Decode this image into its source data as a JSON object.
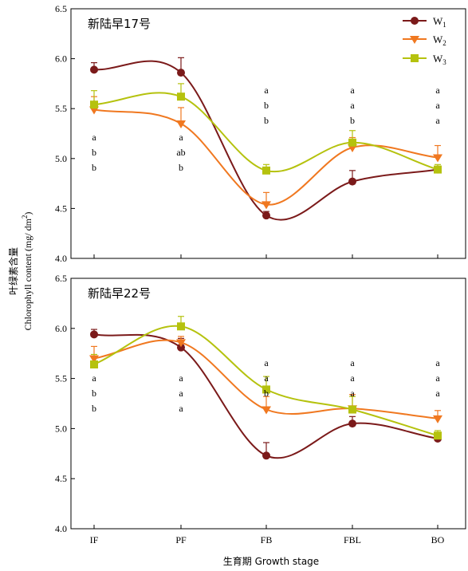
{
  "chart_data": [
    {
      "type": "line",
      "title": "新陆早17号",
      "categories": [
        "IF",
        "PF",
        "FB",
        "FBL",
        "BO"
      ],
      "ylim": [
        4.0,
        6.5
      ],
      "yticks": [
        "4.0",
        "4.5",
        "5.0",
        "5.5",
        "6.0",
        "6.5"
      ],
      "series": [
        {
          "name": "W1",
          "values": [
            5.89,
            5.86,
            4.43,
            4.77,
            4.89
          ],
          "errors": [
            0.07,
            0.15,
            0.04,
            0.11,
            0.03
          ]
        },
        {
          "name": "W2",
          "values": [
            5.49,
            5.35,
            4.54,
            5.11,
            5.01
          ],
          "errors": [
            0.13,
            0.16,
            0.12,
            0.1,
            0.12
          ]
        },
        {
          "name": "W3",
          "values": [
            5.54,
            5.62,
            4.88,
            5.16,
            4.89
          ],
          "errors": [
            0.14,
            0.13,
            0.06,
            0.12,
            0.05
          ]
        }
      ],
      "annotations": [
        [
          "a",
          "b",
          "b"
        ],
        [
          "a",
          "ab",
          "b"
        ],
        [
          "a",
          "b",
          "b"
        ],
        [
          "a",
          "a",
          "b"
        ],
        [
          "a",
          "a",
          "a"
        ]
      ]
    },
    {
      "type": "line",
      "title": "新陆早22号",
      "categories": [
        "IF",
        "PF",
        "FB",
        "FBL",
        "BO"
      ],
      "ylim": [
        4.0,
        6.5
      ],
      "yticks": [
        "4.0",
        "4.5",
        "5.0",
        "5.5",
        "6.0",
        "6.5"
      ],
      "series": [
        {
          "name": "W1",
          "values": [
            5.94,
            5.81,
            4.73,
            5.05,
            4.9
          ],
          "errors": [
            0.05,
            0.09,
            0.13,
            0.07,
            0.05
          ]
        },
        {
          "name": "W2",
          "values": [
            5.7,
            5.86,
            5.19,
            5.2,
            5.1
          ],
          "errors": [
            0.12,
            0.06,
            0.13,
            0.14,
            0.08
          ]
        },
        {
          "name": "W3",
          "values": [
            5.64,
            6.02,
            5.39,
            5.19,
            4.93
          ],
          "errors": [
            0.1,
            0.1,
            0.13,
            0.13,
            0.05
          ]
        }
      ],
      "annotations": [
        [
          "a",
          "b",
          "b"
        ],
        [
          "a",
          "a",
          "a"
        ],
        [
          "a",
          "a",
          "b"
        ],
        [
          "a",
          "a",
          "a"
        ],
        [
          "a",
          "a",
          "a"
        ]
      ]
    }
  ],
  "legend": {
    "placement": "top-right",
    "items": [
      {
        "name": "W",
        "sub": "1",
        "color": "#7b1a1a",
        "marker": "circle"
      },
      {
        "name": "W",
        "sub": "2",
        "color": "#f07820",
        "marker": "triangle-down"
      },
      {
        "name": "W",
        "sub": "3",
        "color": "#b5c20e",
        "marker": "square"
      }
    ]
  },
  "ylabel": {
    "cn": "叶绿素含量",
    "en": "Chlorophyll content (mg/ dm",
    "sup": "2",
    "close": ")"
  },
  "xlabel": "生育期  Growth stage",
  "colors": {
    "W1": "#7b1a1a",
    "W2": "#f07820",
    "W3": "#b5c20e"
  }
}
